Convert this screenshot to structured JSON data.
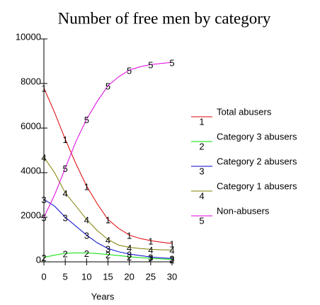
{
  "chart_data": {
    "type": "line",
    "title": "Number of free men by category",
    "x_label": "Years",
    "x": [
      0,
      2.5,
      5,
      7.5,
      10,
      12.5,
      15,
      17.5,
      20,
      22.5,
      25,
      27.5,
      30
    ],
    "xlim": [
      0,
      30
    ],
    "xticks": [
      0,
      5,
      10,
      15,
      20,
      25,
      30
    ],
    "ylim": [
      0,
      10000
    ],
    "yticks": [
      0,
      2000,
      4000,
      6000,
      8000,
      10000
    ],
    "series": [
      {
        "name": "Total abusers",
        "marker": "1",
        "color": "#e00000",
        "values": [
          7800,
          6700,
          5500,
          4400,
          3400,
          2600,
          1900,
          1500,
          1200,
          1050,
          950,
          880,
          820
        ]
      },
      {
        "name": "Category 3 abusers",
        "marker": "2",
        "color": "#00e000",
        "values": [
          200,
          300,
          380,
          400,
          400,
          370,
          330,
          280,
          230,
          190,
          160,
          130,
          110
        ]
      },
      {
        "name": "Category 2 abusers",
        "marker": "3",
        "color": "#0000d0",
        "values": [
          2800,
          2500,
          2000,
          1600,
          1200,
          850,
          600,
          450,
          350,
          280,
          220,
          180,
          150
        ]
      },
      {
        "name": "Category 1 abusers",
        "marker": "4",
        "color": "#808000",
        "values": [
          4700,
          4000,
          3100,
          2500,
          1900,
          1400,
          1000,
          750,
          650,
          600,
          560,
          540,
          530
        ]
      },
      {
        "name": "Non-abusers",
        "marker": "5",
        "color": "#e000e0",
        "values": [
          2000,
          3000,
          4200,
          5400,
          6400,
          7200,
          7900,
          8300,
          8600,
          8750,
          8850,
          8900,
          8950
        ]
      }
    ]
  }
}
